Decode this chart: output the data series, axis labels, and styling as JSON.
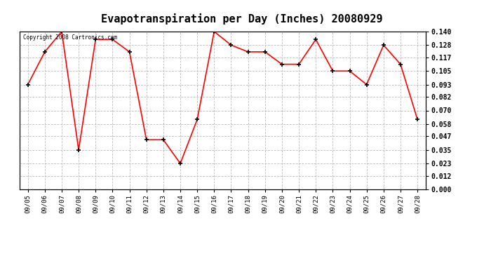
{
  "title": "Evapotranspiration per Day (Inches) 20080929",
  "copyright_text": "Copyright 2008 Cartronics.com",
  "dates": [
    "09/05",
    "09/06",
    "09/07",
    "09/08",
    "09/09",
    "09/10",
    "09/11",
    "09/12",
    "09/13",
    "09/14",
    "09/15",
    "09/16",
    "09/17",
    "09/18",
    "09/19",
    "09/20",
    "09/21",
    "09/22",
    "09/23",
    "09/24",
    "09/25",
    "09/26",
    "09/27",
    "09/28"
  ],
  "values": [
    0.093,
    0.122,
    0.14,
    0.035,
    0.133,
    0.133,
    0.122,
    0.044,
    0.044,
    0.023,
    0.062,
    0.14,
    0.128,
    0.122,
    0.122,
    0.111,
    0.111,
    0.133,
    0.105,
    0.105,
    0.093,
    0.128,
    0.111,
    0.062
  ],
  "yticks": [
    0.0,
    0.012,
    0.023,
    0.035,
    0.047,
    0.058,
    0.07,
    0.082,
    0.093,
    0.105,
    0.117,
    0.128,
    0.14
  ],
  "line_color": "#ff0000",
  "marker": "+",
  "marker_color": "#000000",
  "bg_color": "#ffffff",
  "plot_bg_color": "#ffffff",
  "grid_color": "#bbbbbb",
  "title_fontsize": 11,
  "ylim": [
    0.0,
    0.14
  ]
}
